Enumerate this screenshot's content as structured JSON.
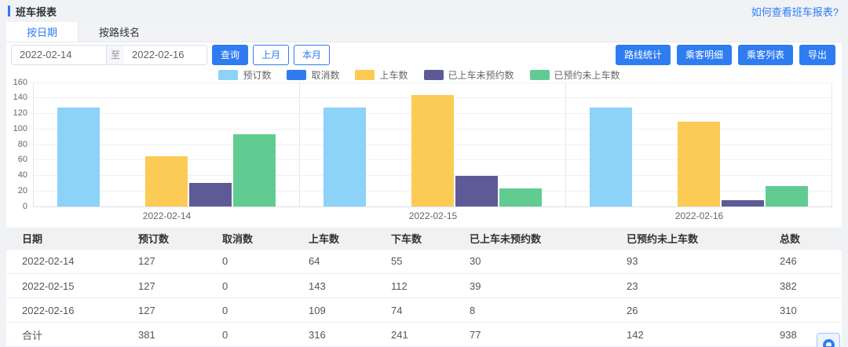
{
  "page": {
    "title": "班车报表",
    "help_link": "如何查看班车报表?"
  },
  "tabs": [
    {
      "label": "按日期",
      "active": true
    },
    {
      "label": "按路线名",
      "active": false
    }
  ],
  "toolbar": {
    "date_from": "2022-02-14",
    "date_separator": "至",
    "date_to": "2022-02-16",
    "query_label": "查询",
    "prev_month_label": "上月",
    "this_month_label": "本月",
    "actions": [
      {
        "label": "路线统计"
      },
      {
        "label": "乘客明细"
      },
      {
        "label": "乘客列表"
      },
      {
        "label": "导出"
      }
    ]
  },
  "colors": {
    "accent": "#2F7CF0"
  },
  "chart_data": {
    "type": "bar",
    "categories": [
      "2022-02-14",
      "2022-02-15",
      "2022-02-16"
    ],
    "series": [
      {
        "name": "预订数",
        "color": "#8DD2F7",
        "values": [
          127,
          127,
          127
        ]
      },
      {
        "name": "取消数",
        "color": "#2F7CF0",
        "values": [
          0,
          0,
          0
        ]
      },
      {
        "name": "上车数",
        "color": "#FBCB55",
        "values": [
          64,
          143,
          109
        ]
      },
      {
        "name": "已上车未预约数",
        "color": "#5D5A96",
        "values": [
          30,
          39,
          8
        ]
      },
      {
        "name": "已预约未上车数",
        "color": "#61CC92",
        "values": [
          93,
          23,
          26
        ]
      }
    ],
    "title": "",
    "xlabel": "",
    "ylabel": "",
    "ylim": [
      0,
      160
    ],
    "ytick_step": 20,
    "grid": true,
    "legend_position": "top"
  },
  "table": {
    "columns": [
      "日期",
      "预订数",
      "取消数",
      "上车数",
      "下车数",
      "已上车未预约数",
      "已预约未上车数",
      "总数"
    ],
    "rows": [
      [
        "2022-02-14",
        "127",
        "0",
        "64",
        "55",
        "30",
        "93",
        "246"
      ],
      [
        "2022-02-15",
        "127",
        "0",
        "143",
        "112",
        "39",
        "23",
        "382"
      ],
      [
        "2022-02-16",
        "127",
        "0",
        "109",
        "74",
        "8",
        "26",
        "310"
      ],
      [
        "合计",
        "381",
        "0",
        "316",
        "241",
        "77",
        "142",
        "938"
      ]
    ]
  }
}
